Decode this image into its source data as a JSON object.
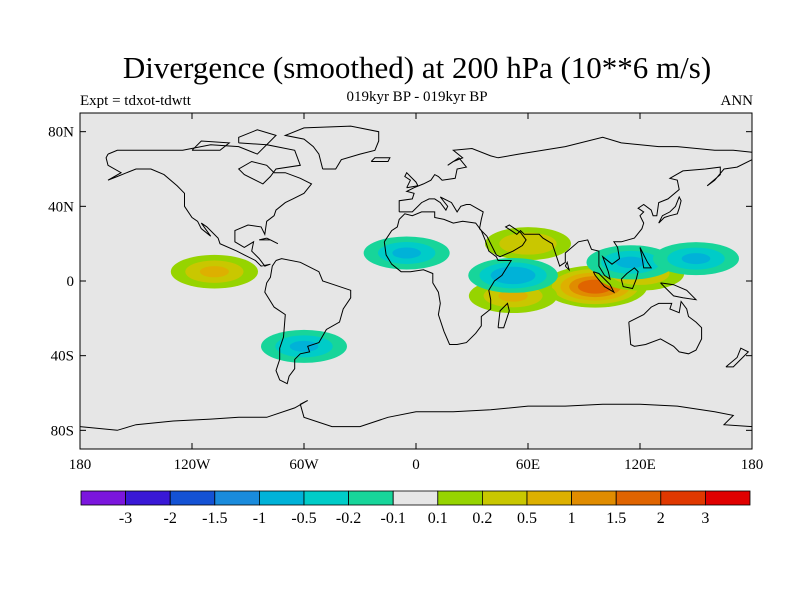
{
  "title": "Divergence (smoothed) at 200 hPa (10**6 m/s)",
  "left_label": "Expt = tdxot-tdwtt",
  "subtitle": "019kyr BP - 019kyr BP",
  "right_label": "ANN",
  "lat_ticks": [
    {
      "value": 80,
      "label": "80N"
    },
    {
      "value": 40,
      "label": "40N"
    },
    {
      "value": 0,
      "label": "0"
    },
    {
      "value": -40,
      "label": "40S"
    },
    {
      "value": -80,
      "label": "80S"
    }
  ],
  "lon_ticks": [
    {
      "value": -180,
      "label": "180"
    },
    {
      "value": -120,
      "label": "120W"
    },
    {
      "value": -60,
      "label": "60W"
    },
    {
      "value": 0,
      "label": "0"
    },
    {
      "value": 60,
      "label": "60E"
    },
    {
      "value": 120,
      "label": "120E"
    },
    {
      "value": 180,
      "label": "180"
    }
  ],
  "colorbar": {
    "colors": [
      "#7b16dd",
      "#3918d6",
      "#1452d4",
      "#1a8bdc",
      "#00b2d8",
      "#00ccc8",
      "#17d59a",
      "#e6e6e6",
      "#96d400",
      "#c9c700",
      "#ddb000",
      "#e08c00",
      "#e06400",
      "#e03800",
      "#e00000"
    ],
    "labels": [
      "-3",
      "-2",
      "-1.5",
      "-1",
      "-0.5",
      "-0.2",
      "-0.1",
      "0.1",
      "0.2",
      "0.5",
      "1",
      "1.5",
      "2",
      "3"
    ]
  },
  "chart_data": {
    "type": "heatmap",
    "title": "Divergence (smoothed) at 200 hPa (10**6 m/s)",
    "subtitle": "019kyr BP - 019kyr BP",
    "lon_range": [
      -180,
      180
    ],
    "lat_range": [
      -90,
      90
    ],
    "levels": [
      -3,
      -2,
      -1.5,
      -1,
      -0.5,
      -0.2,
      -0.1,
      0.1,
      0.2,
      0.5,
      1,
      1.5,
      2,
      3
    ],
    "background_value_range": [
      -0.1,
      0.1
    ],
    "features": [
      {
        "lon": 96,
        "lat": -3,
        "value": 2.0
      },
      {
        "lon": 120,
        "lat": 4,
        "value": 0.7
      },
      {
        "lon": 60,
        "lat": 20,
        "value": 0.5
      },
      {
        "lon": 52,
        "lat": -8,
        "value": 0.7
      },
      {
        "lon": -108,
        "lat": 5,
        "value": 0.6
      },
      {
        "lon": 52,
        "lat": 3,
        "value": -0.8
      },
      {
        "lon": 115,
        "lat": 10,
        "value": -0.7
      },
      {
        "lon": -5,
        "lat": 15,
        "value": -0.5
      },
      {
        "lon": -60,
        "lat": -35,
        "value": -0.5
      },
      {
        "lon": 150,
        "lat": 12,
        "value": -0.5
      }
    ]
  }
}
